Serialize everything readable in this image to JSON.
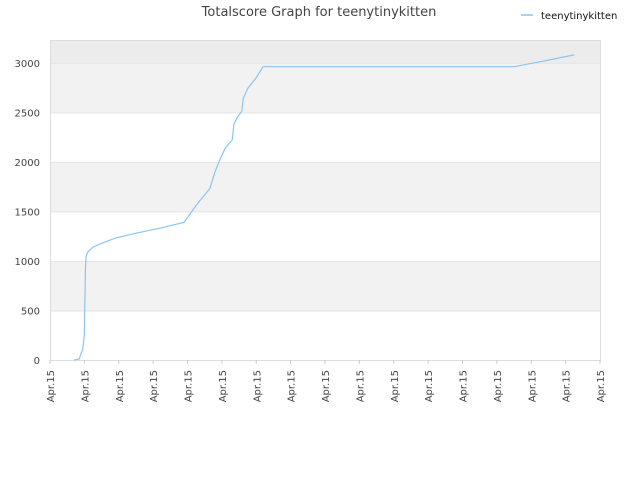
{
  "chart_data": {
    "type": "line",
    "title": "Totalscore Graph for teenytinykitten",
    "xlabel": "",
    "ylabel": "",
    "x_tick_labels": [
      "Apr.15",
      "Apr.15",
      "Apr.15",
      "Apr.15",
      "Apr.15",
      "Apr.15",
      "Apr.15",
      "Apr.15",
      "Apr.15",
      "Apr.15",
      "Apr.15",
      "Apr.15",
      "Apr.15",
      "Apr.15",
      "Apr.15",
      "Apr.15",
      "Apr.15"
    ],
    "y_ticks": [
      0,
      500,
      1000,
      1500,
      2000,
      2500,
      3000
    ],
    "xlim": [
      0,
      16
    ],
    "ylim": [
      0,
      3230
    ],
    "grid": true,
    "legend_position": "top-right",
    "series": [
      {
        "name": "teenytinykitten",
        "color": "#8cc4f0",
        "points": [
          [
            0.7,
            0
          ],
          [
            0.85,
            10
          ],
          [
            0.9,
            60
          ],
          [
            0.95,
            110
          ],
          [
            0.98,
            190
          ],
          [
            1.0,
            260
          ],
          [
            1.01,
            500
          ],
          [
            1.02,
            700
          ],
          [
            1.03,
            900
          ],
          [
            1.05,
            1050
          ],
          [
            1.1,
            1090
          ],
          [
            1.25,
            1140
          ],
          [
            1.45,
            1170
          ],
          [
            1.9,
            1230
          ],
          [
            2.5,
            1280
          ],
          [
            3.2,
            1330
          ],
          [
            3.9,
            1390
          ],
          [
            4.25,
            1560
          ],
          [
            4.65,
            1730
          ],
          [
            4.8,
            1900
          ],
          [
            4.95,
            2030
          ],
          [
            5.1,
            2140
          ],
          [
            5.3,
            2220
          ],
          [
            5.35,
            2380
          ],
          [
            5.45,
            2450
          ],
          [
            5.58,
            2510
          ],
          [
            5.62,
            2640
          ],
          [
            5.75,
            2740
          ],
          [
            6.0,
            2850
          ],
          [
            6.2,
            2960
          ],
          [
            6.8,
            2960
          ],
          [
            8.0,
            2960
          ],
          [
            10.0,
            2960
          ],
          [
            12.0,
            2960
          ],
          [
            13.5,
            2960
          ],
          [
            14.4,
            3020
          ],
          [
            15.25,
            3080
          ]
        ]
      }
    ]
  }
}
